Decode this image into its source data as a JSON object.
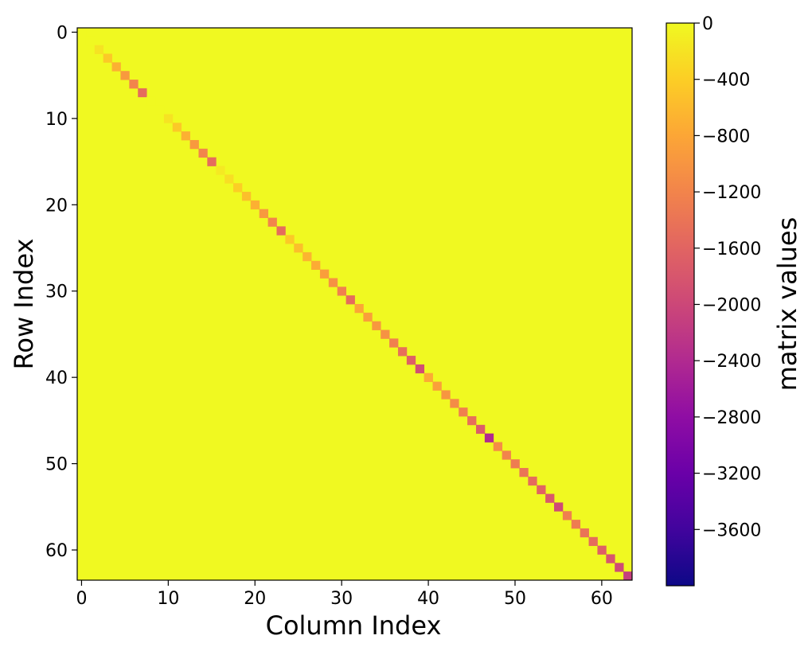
{
  "chart_data": {
    "type": "heatmap",
    "title": "",
    "xlabel": "Column Index",
    "ylabel": "Row Index",
    "size": 64,
    "background_value": 0,
    "x_ticks": [
      0,
      10,
      20,
      30,
      40,
      50,
      60
    ],
    "y_ticks": [
      0,
      10,
      20,
      30,
      40,
      50,
      60
    ],
    "diagonal": {
      "indices": [
        0,
        1,
        2,
        3,
        4,
        5,
        6,
        7,
        8,
        9,
        10,
        11,
        12,
        13,
        14,
        15,
        16,
        17,
        18,
        19,
        20,
        21,
        22,
        23,
        24,
        25,
        26,
        27,
        28,
        29,
        30,
        31,
        32,
        33,
        34,
        35,
        36,
        37,
        38,
        39,
        40,
        41,
        42,
        43,
        44,
        45,
        46,
        47,
        48,
        49,
        50,
        51,
        52,
        53,
        54,
        55,
        56,
        57,
        58,
        59,
        60,
        61,
        62,
        63
      ],
      "values": [
        0,
        0,
        -200,
        -450,
        -700,
        -950,
        -1200,
        -1500,
        0,
        0,
        -200,
        -450,
        -700,
        -950,
        -1200,
        -1500,
        -150,
        -250,
        -400,
        -550,
        -700,
        -950,
        -1200,
        -1500,
        -450,
        -550,
        -650,
        -750,
        -900,
        -1050,
        -1250,
        -1500,
        -800,
        -880,
        -960,
        -1040,
        -1250,
        -1450,
        -1650,
        -1900,
        -750,
        -870,
        -990,
        -1110,
        -1250,
        -1450,
        -1700,
        -2400,
        -1100,
        -1200,
        -1300,
        -1400,
        -1500,
        -1600,
        -1750,
        -1950,
        -1250,
        -1300,
        -1400,
        -1500,
        -1650,
        -1800,
        -1950,
        -2100
      ]
    },
    "colorbar": {
      "label": "matrix values",
      "colormap": "plasma",
      "vmin": -4000,
      "vmax": 0,
      "ticks": [
        0,
        -400,
        -800,
        -1200,
        -1600,
        -2000,
        -2400,
        -2800,
        -3200,
        -3600
      ],
      "tick_labels": [
        "0",
        "−400",
        "−800",
        "−1200",
        "−1600",
        "−2000",
        "−2400",
        "−2800",
        "−3200",
        "−3600"
      ]
    }
  }
}
